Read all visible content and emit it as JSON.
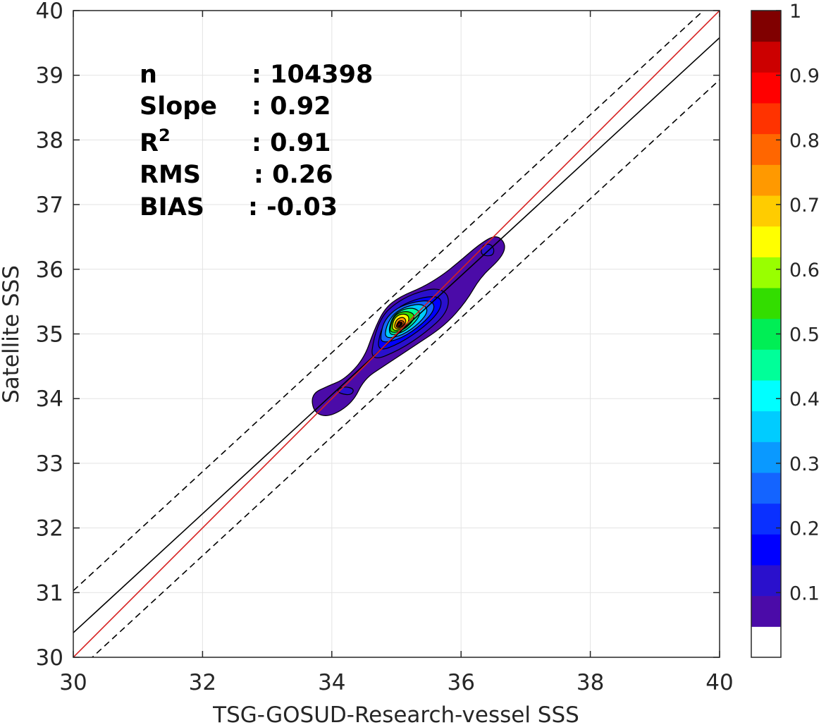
{
  "chart_data": {
    "type": "contour",
    "xlabel": "TSG-GOSUD-Research-vessel SSS",
    "ylabel": "Satellite SSS",
    "xlim": [
      30,
      40
    ],
    "ylim": [
      30,
      40
    ],
    "xticks": [
      "30",
      "32",
      "34",
      "36",
      "38",
      "40"
    ],
    "yticks": [
      "30",
      "31",
      "32",
      "33",
      "34",
      "35",
      "36",
      "37",
      "38",
      "39",
      "40"
    ],
    "grid": true,
    "stats": [
      {
        "key": "n",
        "value": ": 104398"
      },
      {
        "key": "Slope",
        "value": ": 0.92"
      },
      {
        "key": "R",
        "sup": "2",
        "value": ": 0.91"
      },
      {
        "key": "RMS",
        "value": ": 0.26"
      },
      {
        "key": "BIAS",
        "value": ": -0.03"
      }
    ],
    "lines": {
      "identity": {
        "color": "#d62020",
        "points": [
          [
            30,
            30
          ],
          [
            40,
            40
          ]
        ]
      },
      "regression": {
        "color": "#000000",
        "points": [
          [
            30,
            30.38
          ],
          [
            40,
            39.58
          ]
        ]
      },
      "upper_bound": {
        "style": "dashed",
        "points": [
          [
            30,
            31.03
          ],
          [
            40,
            40.23
          ]
        ]
      },
      "lower_bound": {
        "style": "dashed",
        "points": [
          [
            30,
            29.73
          ],
          [
            40,
            38.93
          ]
        ]
      }
    },
    "density_peak": {
      "x": 35.08,
      "y": 35.15,
      "value": 1
    },
    "colorbar": {
      "range": [
        0,
        1
      ],
      "ticks": [
        "0.1",
        "0.2",
        "0.3",
        "0.4",
        "0.5",
        "0.6",
        "0.7",
        "0.8",
        "0.9",
        "1"
      ],
      "colors": [
        "#ffffff",
        "#4b0ba8",
        "#2a10cc",
        "#0000ff",
        "#0a30ff",
        "#1464ff",
        "#0a99ff",
        "#00ccff",
        "#00ffff",
        "#00ff99",
        "#00ee55",
        "#33dd00",
        "#99ff00",
        "#ffff00",
        "#ffcc00",
        "#ff9900",
        "#ff6600",
        "#ff3300",
        "#ff0000",
        "#cc0000",
        "#800000"
      ]
    }
  }
}
